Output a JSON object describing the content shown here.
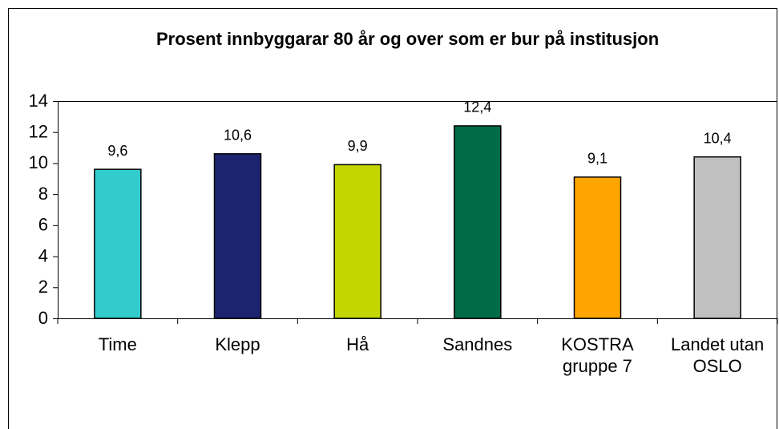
{
  "chart_data": {
    "type": "bar",
    "title": "Prosent innbyggarar 80 år og over som er bur på institusjon",
    "categories": [
      "Time",
      "Klepp",
      "Hå",
      "Sandnes",
      "KOSTRA gruppe 7",
      "Landet utan OSLO"
    ],
    "values": [
      9.6,
      10.6,
      9.9,
      12.4,
      9.1,
      10.4
    ],
    "value_labels": [
      "9,6",
      "10,6",
      "9,9",
      "12,4",
      "9,1",
      "10,4"
    ],
    "colors": [
      "#33cccc",
      "#1c2470",
      "#c4d600",
      "#006b47",
      "#ffa500",
      "#c0c0c0"
    ],
    "ylim": [
      0,
      14
    ],
    "yticks": [
      0,
      2,
      4,
      6,
      8,
      10,
      12,
      14
    ],
    "grid": false
  }
}
